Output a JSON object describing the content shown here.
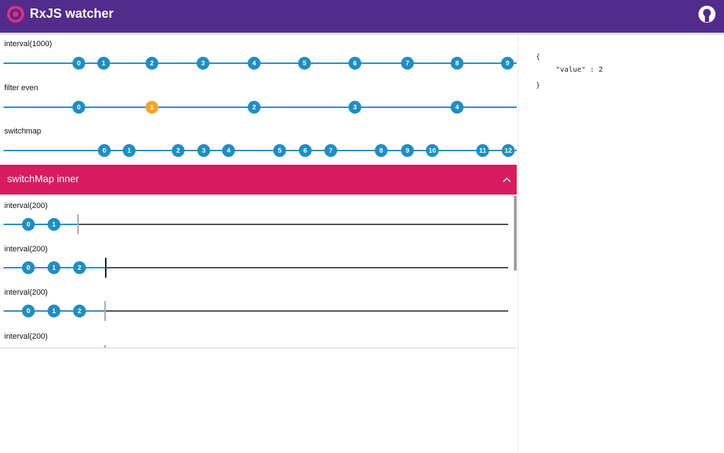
{
  "header": {
    "title": "RxJS watcher"
  },
  "streams": [
    {
      "label": "interval(1000)",
      "marbles": [
        0,
        1,
        2,
        3,
        4,
        5,
        6,
        7,
        8,
        9
      ]
    },
    {
      "label": "filter even",
      "marbles": [
        0,
        1,
        2,
        3,
        4
      ]
    },
    {
      "label": "switchmap",
      "marbles": [
        0,
        1,
        2,
        3,
        4,
        5,
        6,
        7,
        8,
        9,
        10,
        11,
        12
      ]
    }
  ],
  "inner_panel": {
    "title": "switchMap inner",
    "streams": [
      {
        "label": "interval(200)",
        "marbles": [
          0,
          1
        ]
      },
      {
        "label": "interval(200)",
        "marbles": [
          0,
          1,
          2
        ]
      },
      {
        "label": "interval(200)",
        "marbles": [
          0,
          1,
          2
        ]
      },
      {
        "label": "interval(200)",
        "marbles": []
      }
    ]
  },
  "inspector": {
    "lines": [
      "{",
      "\"value\" : 2",
      "}"
    ]
  }
}
